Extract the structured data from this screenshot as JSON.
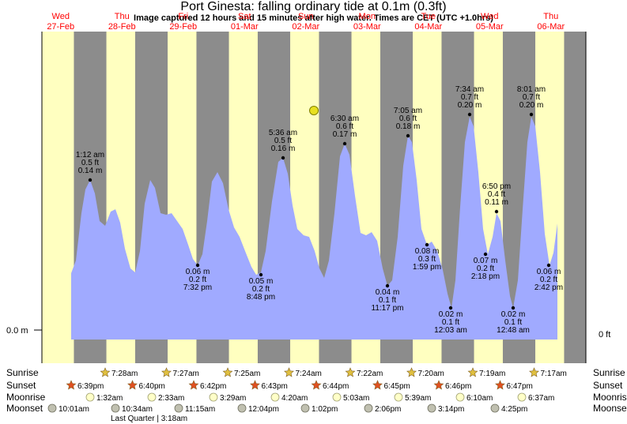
{
  "title": "Port Ginesta: falling  ordinary tide at 0.1m (0.3ft)",
  "subtitle": "Image captured 12 hours and 15 minutes after high water. Times are CET (UTC +1.0hrs)",
  "colors": {
    "day": "#ffffc0",
    "night": "#8c8c8c",
    "tide": "#a0aaff",
    "label_day": "#ff0000",
    "sun_star": "#e0c040",
    "sunset_star": "#e05020",
    "moon": "#ffffc8",
    "moonset": "#c0c0b0"
  },
  "chart_data": {
    "type": "area",
    "title": "Port Ginesta: falling  ordinary tide at 0.1m (0.3ft)",
    "y_left_label": "0.0 m",
    "y_right_label": "0 ft",
    "ylim_m": [
      -0.02,
      0.26
    ],
    "days": [
      {
        "dow": "Wed",
        "date": "27-Feb"
      },
      {
        "dow": "Thu",
        "date": "28-Feb"
      },
      {
        "dow": "Fri",
        "date": "29-Feb"
      },
      {
        "dow": "Sat",
        "date": "01-Mar"
      },
      {
        "dow": "Sun",
        "date": "02-Mar"
      },
      {
        "dow": "Mon",
        "date": "03-Mar"
      },
      {
        "dow": "Tue",
        "date": "04-Mar"
      },
      {
        "dow": "Wed",
        "date": "05-Mar"
      },
      {
        "dow": "Thu",
        "date": "06-Mar"
      }
    ],
    "extremes": [
      {
        "day": 0.0,
        "time": "1:12 am",
        "m": 0.14,
        "ft": "0.5 ft",
        "m_label": "0.14 m",
        "type": "high"
      },
      {
        "day": 2.6,
        "time": "7:32 pm",
        "m": 0.06,
        "ft": "0.2 ft",
        "m_label": "0.06 m",
        "type": "low"
      },
      {
        "day": 3.6,
        "time": "8:48 pm",
        "m": 0.05,
        "ft": "0.2 ft",
        "m_label": "0.05 m",
        "type": "low"
      },
      {
        "day": 4.0,
        "time": "5:36 am",
        "m": 0.16,
        "ft": "0.5 ft",
        "m_label": "0.16 m",
        "type": "high"
      },
      {
        "day": 5.0,
        "time": "6:30 am",
        "m": 0.17,
        "ft": "0.6 ft",
        "m_label": "0.17 m",
        "type": "high"
      },
      {
        "day": 5.9,
        "time": "11:17 pm",
        "m": 0.04,
        "ft": "0.1 ft",
        "m_label": "0.04 m",
        "type": "low"
      },
      {
        "day": 6.0,
        "time": "7:05 am",
        "m": 0.18,
        "ft": "0.6 ft",
        "m_label": "0.18 m",
        "type": "high"
      },
      {
        "day": 6.3,
        "time": "1:59 pm",
        "m": 0.08,
        "ft": "0.3 ft",
        "m_label": "0.08 m",
        "type": "low"
      },
      {
        "day": 7.0,
        "time": "12:03 am",
        "m": 0.02,
        "ft": "0.1 ft",
        "m_label": "0.02 m",
        "type": "low"
      },
      {
        "day": 7.1,
        "time": "7:34 am",
        "m": 0.2,
        "ft": "0.7 ft",
        "m_label": "0.20 m",
        "type": "high"
      },
      {
        "day": 7.4,
        "time": "2:18 pm",
        "m": 0.07,
        "ft": "0.2 ft",
        "m_label": "0.07 m",
        "type": "low"
      },
      {
        "day": 7.7,
        "time": "6:50 pm",
        "m": 0.11,
        "ft": "0.4 ft",
        "m_label": "0.11 m",
        "type": "high"
      },
      {
        "day": 8.0,
        "time": "12:48 am",
        "m": 0.02,
        "ft": "0.1 ft",
        "m_label": "0.02 m",
        "type": "low"
      },
      {
        "day": 8.1,
        "time": "8:01 am",
        "m": 0.2,
        "ft": "0.7 ft",
        "m_label": "0.20 m",
        "type": "high"
      },
      {
        "day": 8.4,
        "time": "2:42 pm",
        "m": 0.06,
        "ft": "0.2 ft",
        "m_label": "0.06 m",
        "type": "low"
      }
    ],
    "current": {
      "m": 0.1
    }
  },
  "rows": {
    "sunrise": {
      "label": "Sunrise",
      "times": [
        "7:28am",
        "7:27am",
        "7:25am",
        "7:24am",
        "7:22am",
        "7:20am",
        "7:19am",
        "7:17am"
      ]
    },
    "sunset": {
      "label": "Sunset",
      "times": [
        "6:39pm",
        "6:40pm",
        "6:42pm",
        "6:43pm",
        "6:44pm",
        "6:45pm",
        "6:46pm",
        "6:47pm"
      ]
    },
    "moonrise": {
      "label": "Moonrise",
      "times": [
        "1:32am",
        "2:33am",
        "3:29am",
        "4:20am",
        "5:03am",
        "5:39am",
        "6:10am",
        "6:37am"
      ]
    },
    "moonset": {
      "label": "Moonset",
      "times": [
        "10:01am",
        "10:34am",
        "11:15am",
        "12:04pm",
        "1:02pm",
        "2:06pm",
        "3:14pm",
        "4:25pm"
      ]
    },
    "quarter": "Last Quarter | 3:18am"
  }
}
